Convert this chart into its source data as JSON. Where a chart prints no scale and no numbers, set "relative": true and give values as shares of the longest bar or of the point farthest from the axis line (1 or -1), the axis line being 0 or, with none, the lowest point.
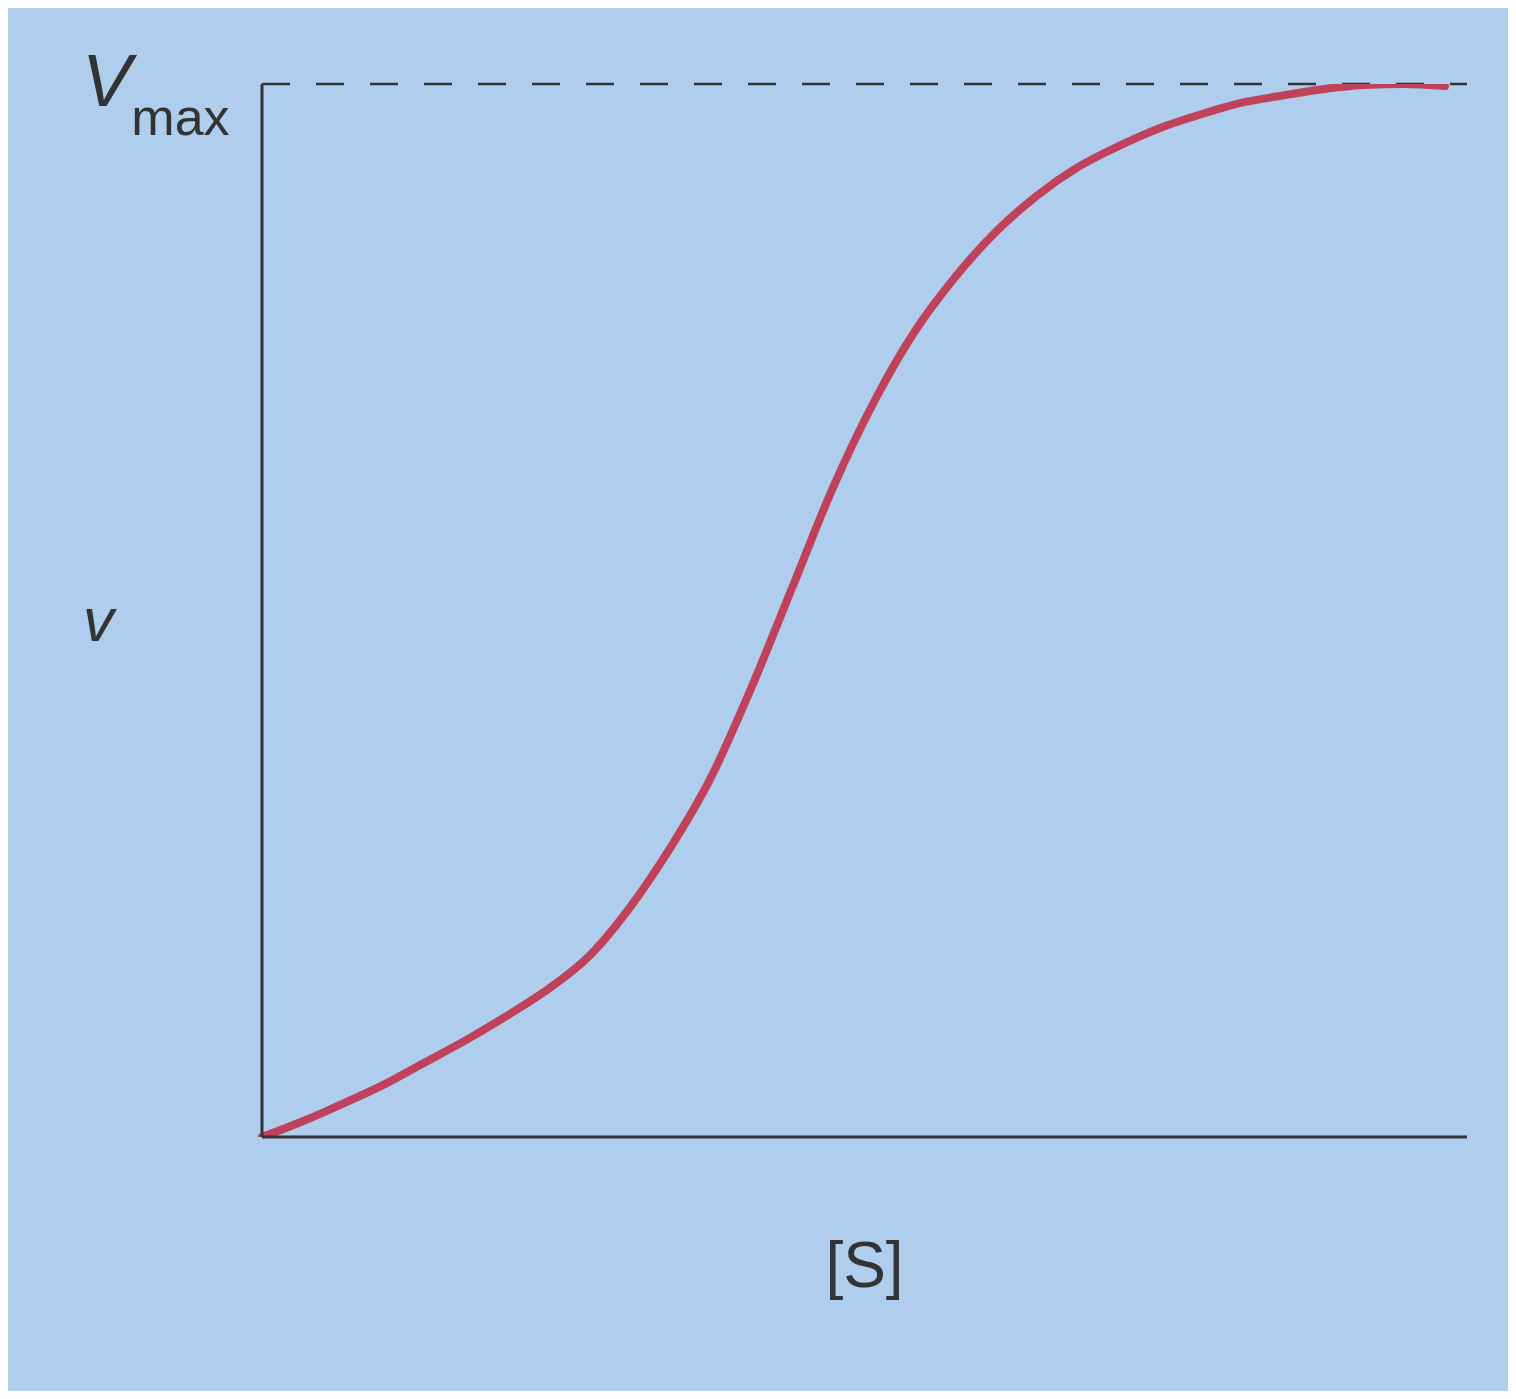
{
  "chart_data": {
    "type": "line",
    "xlabel": "[S]",
    "ylabel": "v",
    "relative": true,
    "marker": "none",
    "line_style": "solid",
    "categories": [
      null,
      null,
      null,
      null,
      null,
      null,
      null,
      null,
      null,
      null,
      null,
      null,
      null,
      null,
      null,
      null,
      null,
      null,
      null,
      null,
      null,
      null,
      null,
      null,
      null,
      null,
      null,
      null,
      null,
      null
    ],
    "series": [
      {
        "color": "#c0415a",
        "values": [
          0,
          0.015,
          0.032,
          0.05,
          0.071,
          0.092,
          0.115,
          0.14,
          0.171,
          0.217,
          0.274,
          0.341,
          0.427,
          0.522,
          0.617,
          0.698,
          0.765,
          0.817,
          0.86,
          0.894,
          0.921,
          0.941,
          0.958,
          0.971,
          0.982,
          0.989,
          0.995,
          0.999,
          1,
          0.998
        ]
      }
    ],
    "ref_lines": [
      {
        "axis": "y",
        "value": 1,
        "label": "V$_{max}$",
        "color": "#333333",
        "line_style": "dashed"
      }
    ]
  }
}
